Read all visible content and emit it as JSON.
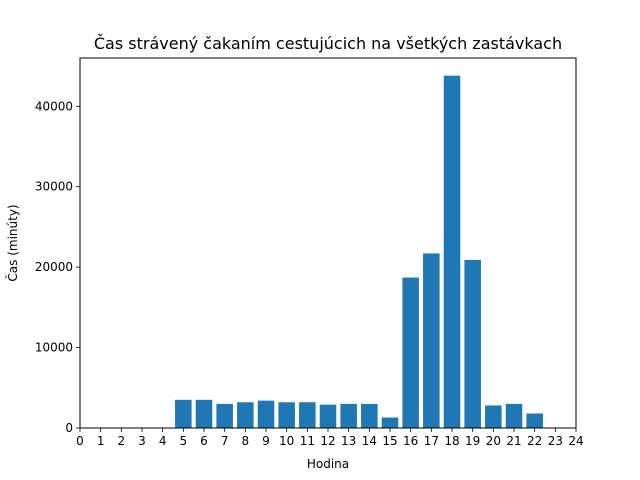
{
  "chart_data": {
    "type": "bar",
    "title": "Čas strávený čakaním cestujúcich na všetkých zastávkach",
    "xlabel": "Hodina",
    "ylabel": "Čas (minúty)",
    "x": [
      5,
      6,
      7,
      8,
      9,
      10,
      11,
      12,
      13,
      14,
      15,
      16,
      17,
      18,
      19,
      20,
      21,
      22
    ],
    "values": [
      3500,
      3500,
      3000,
      3200,
      3400,
      3200,
      3200,
      2900,
      3000,
      3000,
      1300,
      18700,
      21700,
      43800,
      20900,
      2800,
      3000,
      1800
    ],
    "xlim": [
      0,
      24
    ],
    "ylim": [
      0,
      46000
    ],
    "xticks": [
      "0",
      "1",
      "2",
      "3",
      "4",
      "5",
      "6",
      "7",
      "8",
      "9",
      "10",
      "11",
      "12",
      "13",
      "14",
      "15",
      "16",
      "17",
      "18",
      "19",
      "20",
      "21",
      "22",
      "23",
      "24"
    ],
    "yticks": [
      "0",
      "10000",
      "20000",
      "30000",
      "40000"
    ],
    "bar_color": "#1f77b4",
    "grid": false,
    "legend": "none"
  }
}
